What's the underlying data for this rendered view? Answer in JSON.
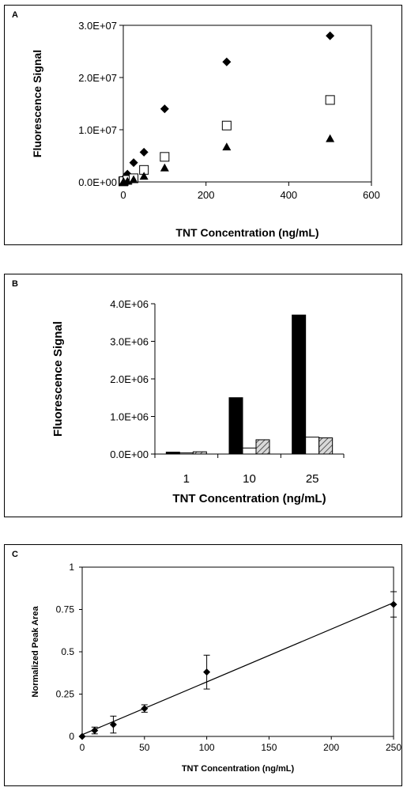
{
  "chart_data": [
    {
      "panel": "A",
      "type": "scatter",
      "xlabel": "TNT Concentration (ng/mL)",
      "ylabel": "Fluorescence Signal",
      "xlim": [
        0,
        600
      ],
      "ylim": [
        0,
        30000000
      ],
      "x_ticks": [
        "0",
        "200",
        "400",
        "600"
      ],
      "y_ticks": [
        "0.0E+00",
        "1.0E+07",
        "2.0E+07",
        "3.0E+07"
      ],
      "grid": false,
      "legend": "none",
      "series": [
        {
          "marker": "diamond-filled",
          "x": [
            0,
            1,
            10,
            25,
            50,
            100,
            250,
            500
          ],
          "y": [
            100000,
            600000,
            1500000,
            3700000,
            5700000,
            14000000,
            23000000,
            28000000
          ]
        },
        {
          "marker": "square-open",
          "x": [
            0,
            1,
            10,
            25,
            50,
            100,
            250,
            500
          ],
          "y": [
            100000,
            150000,
            400000,
            700000,
            2300000,
            4800000,
            10800000,
            15700000
          ]
        },
        {
          "marker": "triangle-filled",
          "x": [
            0,
            1,
            10,
            25,
            50,
            100,
            250,
            500
          ],
          "y": [
            0,
            30000,
            150000,
            450000,
            1100000,
            2700000,
            6700000,
            8300000
          ]
        }
      ]
    },
    {
      "panel": "B",
      "type": "bar",
      "xlabel": "TNT Concentration (ng/mL)",
      "ylabel": "Fluorescence Signal",
      "ylim": [
        0,
        4000000
      ],
      "y_ticks": [
        "0.0E+00",
        "1.0E+06",
        "2.0E+06",
        "3.0E+06",
        "4.0E+06"
      ],
      "categories": [
        "1",
        "10",
        "25"
      ],
      "grid": false,
      "legend": "none",
      "series": [
        {
          "fill": "#000000",
          "values": [
            50000,
            1500000,
            3700000
          ]
        },
        {
          "fill": "#ffffff",
          "values": [
            30000,
            160000,
            450000
          ]
        },
        {
          "fill": "hatched",
          "values": [
            60000,
            380000,
            430000
          ]
        }
      ]
    },
    {
      "panel": "C",
      "type": "scatter",
      "xlabel": "TNT Concentration (ng/mL)",
      "ylabel": "Normalized Peak  Area",
      "xlim": [
        0,
        250
      ],
      "ylim": [
        0,
        1
      ],
      "x_ticks": [
        "0",
        "50",
        "100",
        "150",
        "200",
        "250"
      ],
      "y_ticks": [
        "0",
        "0.25",
        "0.5",
        "0.75",
        "1"
      ],
      "grid": false,
      "legend": "none",
      "series": [
        {
          "marker": "diamond-filled",
          "x": [
            0,
            10,
            25,
            50,
            100,
            250
          ],
          "y": [
            0.0,
            0.035,
            0.07,
            0.165,
            0.38,
            0.78
          ],
          "error": [
            0.0,
            0.02,
            0.05,
            0.022,
            0.1,
            0.075
          ]
        }
      ],
      "fit_line": {
        "x": [
          0,
          250
        ],
        "y": [
          0.01,
          0.79
        ]
      }
    }
  ]
}
